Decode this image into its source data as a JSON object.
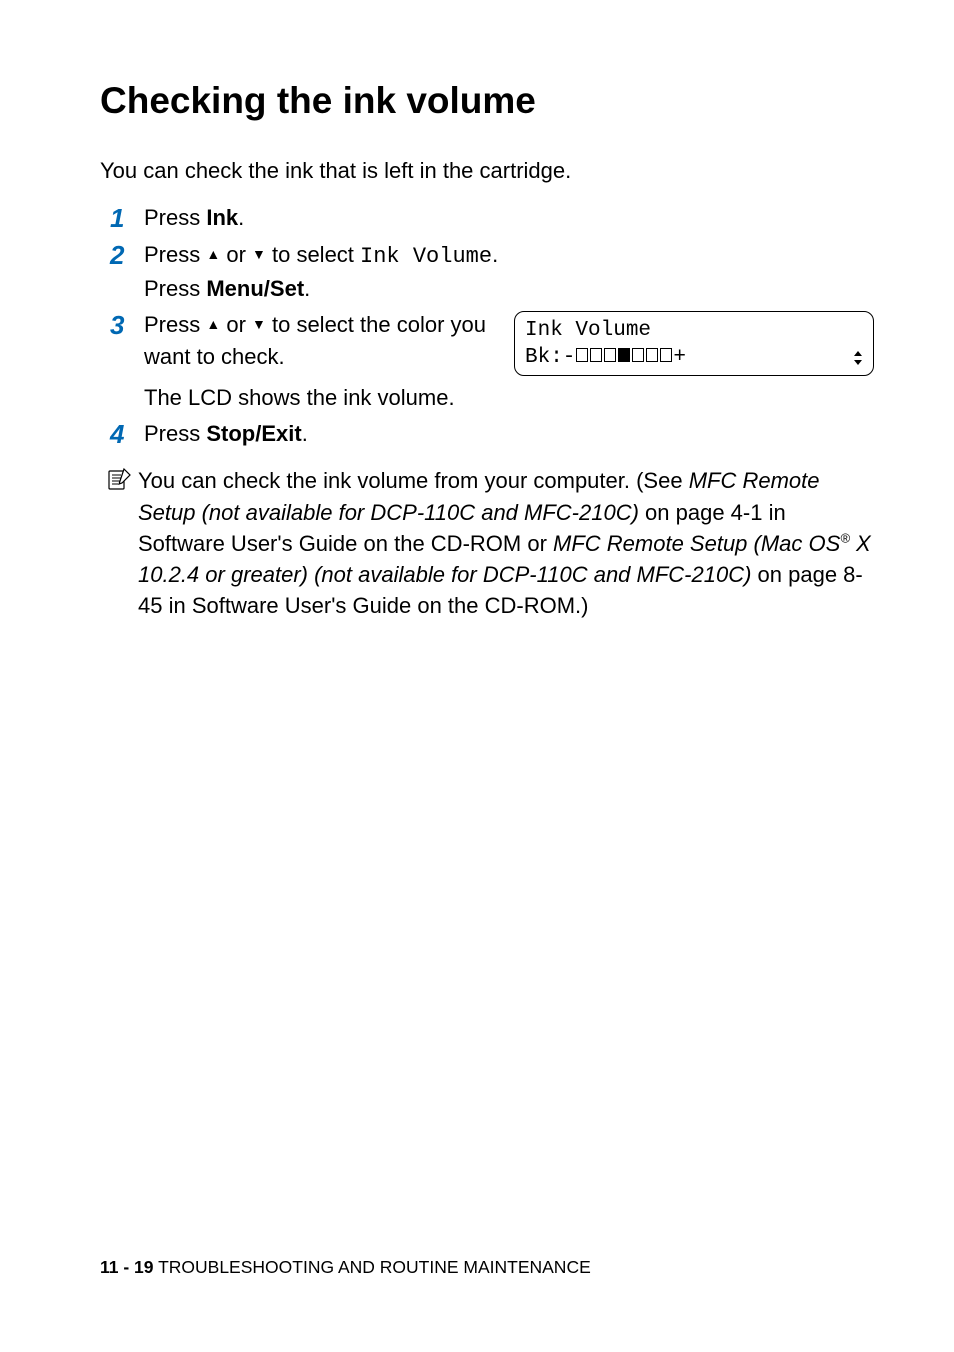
{
  "colors": {
    "step_number": "#0068b3",
    "text": "#000000",
    "background": "#ffffff"
  },
  "title": "Checking the ink volume",
  "intro": "You can check the ink that is left in the cartridge.",
  "steps": {
    "s1": {
      "num": "1",
      "pre": "Press ",
      "bold": "Ink",
      "post": "."
    },
    "s2": {
      "num": "2",
      "line1_pre": "Press ",
      "line1_mid": " or ",
      "line1_post": " to select ",
      "line1_mono": "Ink Volume",
      "line1_end": ".",
      "line2_pre": "Press ",
      "line2_bold": "Menu/Set",
      "line2_post": "."
    },
    "s3": {
      "num": "3",
      "line1_pre": "Press ",
      "line1_mid": " or ",
      "line1_post": " to select the color you want to check.",
      "line2": "The LCD shows the ink volume.",
      "lcd": {
        "row1": "Ink Volume",
        "row2_prefix": "Bk:-",
        "row2_suffix": "+",
        "blocks": [
          "empty",
          "empty",
          "empty",
          "full",
          "empty",
          "empty",
          "empty"
        ]
      }
    },
    "s4": {
      "num": "4",
      "pre": "Press ",
      "bold": "Stop/Exit",
      "post": "."
    }
  },
  "note": {
    "seg1": "You can check the ink volume from your computer. (See ",
    "seg2_italic": "MFC Remote Setup (not available for DCP-110C and MFC-210C)",
    "seg3": " on page 4-1 in Software User's Guide on the CD-ROM or ",
    "seg4_italic_a": "MFC Remote Setup (Mac OS",
    "seg4_sup": "®",
    "seg4_italic_b": " X 10.2.4 or greater) (not available for DCP-110C and MFC-210C)",
    "seg5": " on page 8-45 in Software User's Guide on the CD-ROM.)"
  },
  "footer": {
    "page": "11 - 19",
    "sep": "   ",
    "section": "TROUBLESHOOTING AND ROUTINE MAINTENANCE"
  }
}
